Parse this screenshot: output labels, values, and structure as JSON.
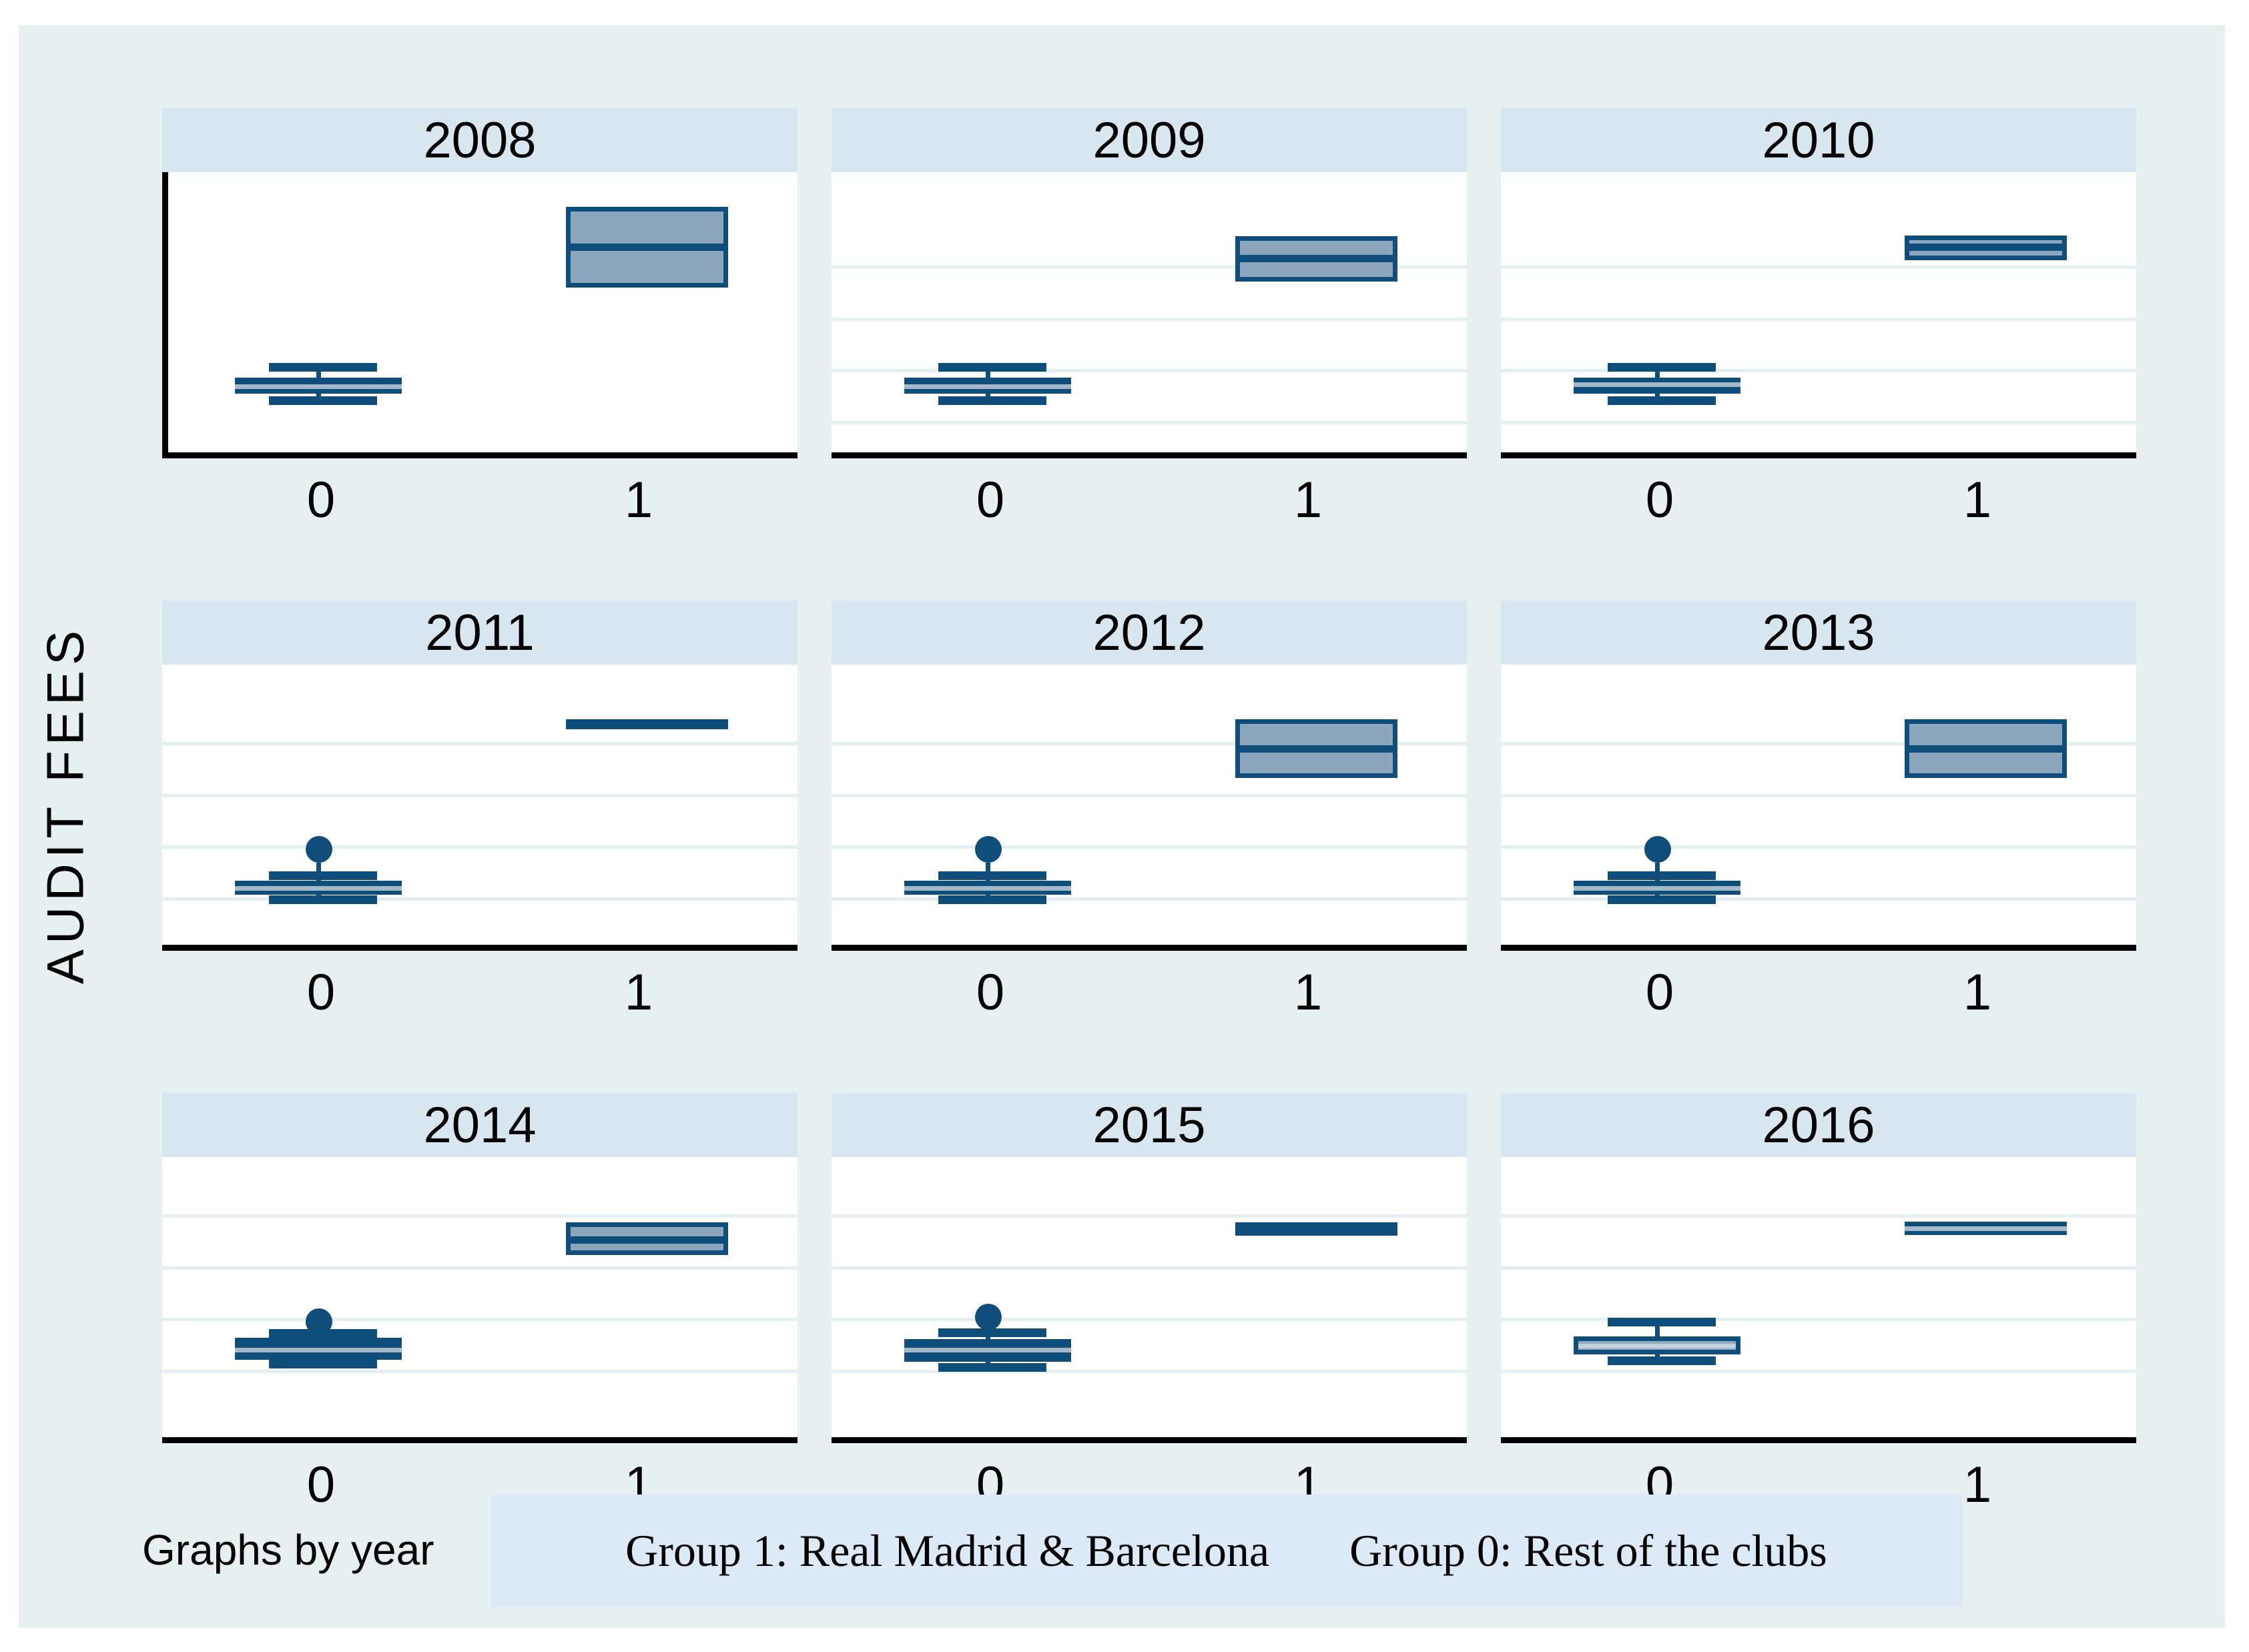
{
  "figure": {
    "ylabel": "AUDIT FEES",
    "caption": "Graphs by year",
    "legend": {
      "group1": "Group 1: Real Madrid & Barcelona",
      "group0": "Group 0: Rest of the clubs"
    },
    "x_tick_labels": [
      "0",
      "1"
    ]
  },
  "colors": {
    "page_bg": "#ffffff",
    "figure_bg": "#E6F0F1",
    "panel_bg": "#ffffff",
    "header_bg": "#D8E6EF",
    "legend_bg": "#DCE9F7",
    "gridline": "#E4EFF1",
    "axis": "#000000",
    "navy": "#0F4D7A",
    "box_fill_light": "#8BA6BC",
    "box_fill_light2": "#93ABC0",
    "median_light": "#A3B8C8",
    "median_light2": "#C2D0DB",
    "text": "#000000"
  },
  "chart_data": {
    "type": "box",
    "title": "",
    "ylabel": "AUDIT FEES",
    "facet_by": "year",
    "categories": [
      "0",
      "1"
    ],
    "legend_entries": [
      "Group 1: Real Madrid & Barcelona",
      "Group 0: Rest of the clubs"
    ],
    "grid": "horizontal gridlines on (except 2008 panel)",
    "value_units": "relative scale 0-1, estimated from pixels (no numeric y-axis labels are shown in the figure)",
    "panels": [
      {
        "year": "2008",
        "group0": {
          "style": "dark",
          "whisker_high": 0.303,
          "q3": 0.266,
          "median": 0.233,
          "q1": 0.209,
          "whisker_low": 0.185,
          "outlier": null
        },
        "group1": {
          "style": "light",
          "whisker_high": null,
          "q3": 0.876,
          "median": 0.732,
          "q1": 0.588,
          "whisker_low": null,
          "outlier": null
        }
      },
      {
        "year": "2009",
        "group0": {
          "style": "dark",
          "whisker_high": 0.303,
          "q3": 0.266,
          "median": 0.235,
          "q1": 0.209,
          "whisker_low": 0.185,
          "outlier": null
        },
        "group1": {
          "style": "light",
          "whisker_high": null,
          "q3": 0.771,
          "median": 0.691,
          "q1": 0.61,
          "whisker_low": null,
          "outlier": null
        }
      },
      {
        "year": "2010",
        "group0": {
          "style": "dark",
          "whisker_high": 0.303,
          "q3": 0.266,
          "median": 0.24,
          "q1": 0.209,
          "whisker_low": 0.185,
          "outlier": null
        },
        "group1": {
          "style": "light",
          "whisker_high": null,
          "q3": 0.773,
          "median": 0.732,
          "q1": 0.686,
          "whisker_low": null,
          "outlier": null
        }
      },
      {
        "year": "2011",
        "group0": {
          "style": "dark",
          "whisker_high": 0.247,
          "q3": 0.228,
          "median": 0.2,
          "q1": 0.178,
          "whisker_low": 0.161,
          "outlier": 0.34
        },
        "group1": {
          "style": "solid",
          "whisker_high": null,
          "q3": 0.805,
          "median": null,
          "q1": 0.77,
          "whisker_low": null,
          "outlier": null
        }
      },
      {
        "year": "2012",
        "group0": {
          "style": "dark",
          "whisker_high": 0.247,
          "q3": 0.228,
          "median": 0.2,
          "q1": 0.178,
          "whisker_low": 0.161,
          "outlier": 0.34
        },
        "group1": {
          "style": "light",
          "whisker_high": null,
          "q3": 0.805,
          "median": 0.698,
          "q1": 0.596,
          "whisker_low": null,
          "outlier": null
        }
      },
      {
        "year": "2013",
        "group0": {
          "style": "dark",
          "whisker_high": 0.247,
          "q3": 0.228,
          "median": 0.2,
          "q1": 0.178,
          "whisker_low": 0.161,
          "outlier": 0.34
        },
        "group1": {
          "style": "light",
          "whisker_high": null,
          "q3": 0.805,
          "median": 0.698,
          "q1": 0.596,
          "whisker_low": null,
          "outlier": null
        }
      },
      {
        "year": "2014",
        "group0": {
          "style": "dark",
          "whisker_high": 0.37,
          "q3": 0.354,
          "median": 0.309,
          "q1": 0.276,
          "whisker_low": 0.26,
          "outlier": 0.411
        },
        "group1": {
          "style": "light",
          "whisker_high": null,
          "q3": 0.767,
          "median": 0.703,
          "q1": 0.651,
          "whisker_low": null,
          "outlier": null
        }
      },
      {
        "year": "2015",
        "group0": {
          "style": "dark",
          "whisker_high": 0.373,
          "q3": 0.349,
          "median": 0.309,
          "q1": 0.268,
          "whisker_low": 0.249,
          "outlier": 0.428
        },
        "group1": {
          "style": "solid",
          "whisker_high": null,
          "q3": 0.767,
          "median": null,
          "q1": 0.72,
          "whisker_low": null,
          "outlier": null
        }
      },
      {
        "year": "2016",
        "group0": {
          "style": "light2",
          "whisker_high": 0.411,
          "q3": 0.359,
          "median": 0.325,
          "q1": 0.295,
          "whisker_low": 0.273,
          "outlier": null
        },
        "group1": {
          "style": "solid_med",
          "whisker_high": null,
          "q3": 0.77,
          "median": 0.746,
          "q1": 0.722,
          "whisker_low": null,
          "outlier": null
        }
      }
    ]
  }
}
